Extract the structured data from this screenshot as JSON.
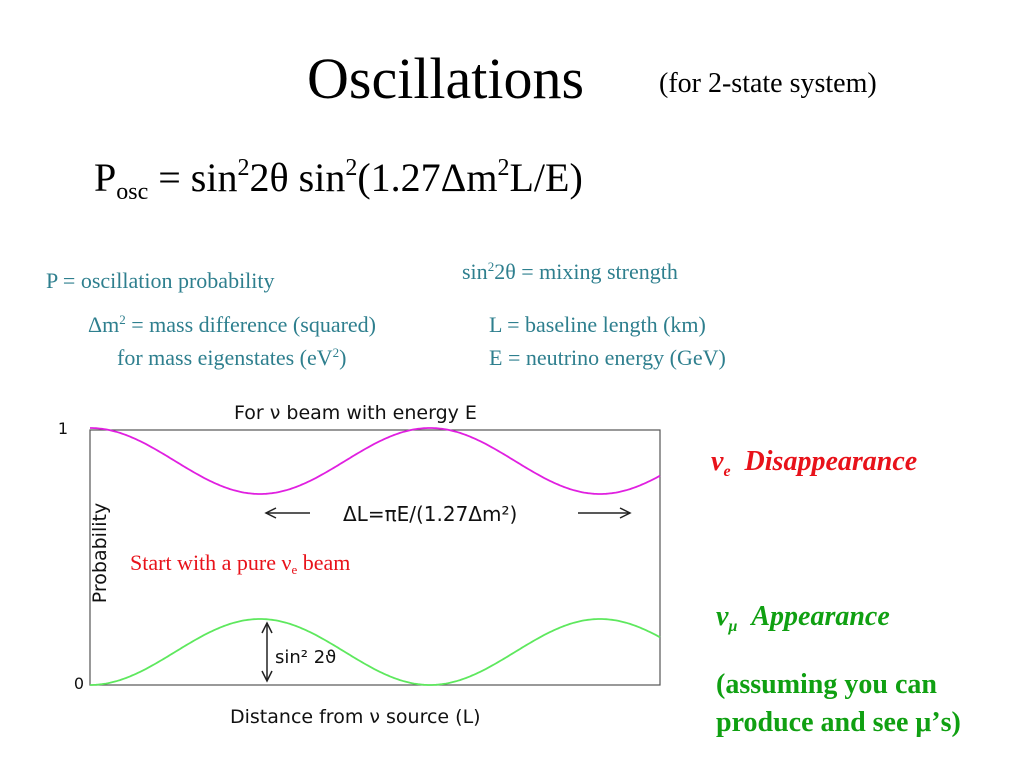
{
  "title": "Oscillations",
  "subtitle": "(for 2-state system)",
  "formula": {
    "p": "P",
    "p_sub": "osc",
    "eq": " = sin",
    "sup1": "2",
    "mid": "2θ sin",
    "sup2": "2",
    "paren": "(1.27Δm",
    "sup3": "2",
    "end": "L/E)"
  },
  "definitions": {
    "mixing_pre": "sin",
    "mixing_sup": "2",
    "mixing_post": "2θ = mixing strength",
    "p": "P = oscillation probability",
    "dm_pre": "Δm",
    "dm_sup": "2",
    "dm_post": " = mass difference (squared)",
    "dm_line2_pre": "for mass eigenstates (eV",
    "dm_line2_sup": "2",
    "dm_line2_post": ")",
    "l": "L = baseline length (km)",
    "e": "E = neutrino energy (GeV)"
  },
  "plot": {
    "title": "For ν beam with energy E",
    "ylabel": "Probability",
    "xlabel": "Distance from ν source (L)",
    "y_tick_top": "1",
    "y_tick_bottom": "0",
    "period_label": "ΔL=πE/(1.27Δm²)",
    "amplitude_label": "sin² 2ϑ",
    "colors": {
      "disappearance": "#e020e0",
      "appearance": "#5ee85e"
    }
  },
  "start_note": {
    "pre": "Start with a pure ν",
    "sub": "e",
    "post": " beam"
  },
  "ve_label": {
    "nu": "ν",
    "sub": "e",
    "text": "  Disappearance"
  },
  "vmu_label": {
    "nu": "ν",
    "sub": "μ",
    "text": "  Appearance"
  },
  "assumption": "(assuming you can produce and see μ’s)"
}
